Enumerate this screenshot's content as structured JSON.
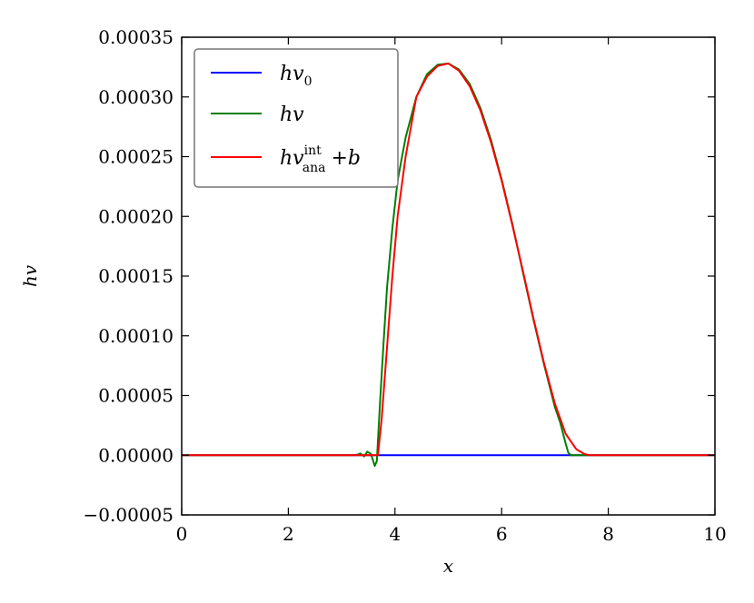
{
  "chart_data": {
    "type": "line",
    "title": "",
    "xlabel": "x",
    "ylabel": "hv",
    "xlim": [
      0,
      10
    ],
    "ylim": [
      -5e-05,
      0.00035
    ],
    "x_ticks": [
      0,
      2,
      4,
      6,
      8,
      10
    ],
    "x_tick_labels": [
      "0",
      "2",
      "4",
      "6",
      "8",
      "10"
    ],
    "y_ticks": [
      -5e-05,
      0,
      5e-05,
      0.0001,
      0.00015,
      0.0002,
      0.00025,
      0.0003,
      0.00035
    ],
    "y_tick_labels": [
      "−0.00005",
      "0.00000",
      "0.00005",
      "0.00010",
      "0.00015",
      "0.00020",
      "0.00025",
      "0.00030",
      "0.00035"
    ],
    "grid": false,
    "legend_position": "top-left",
    "series": [
      {
        "name": "hv0",
        "legend": {
          "base": "hv",
          "sub": "0",
          "sup": "",
          "suffix": ""
        },
        "color": "#0000ff",
        "x": [
          0,
          10
        ],
        "y": [
          0,
          0
        ]
      },
      {
        "name": "hv",
        "legend": {
          "base": "hv",
          "sub": "",
          "sup": "",
          "suffix": ""
        },
        "color": "#008000",
        "x": [
          0,
          3.2,
          3.3,
          3.35,
          3.42,
          3.48,
          3.55,
          3.62,
          3.66,
          3.72,
          3.78,
          3.85,
          3.95,
          4.05,
          4.2,
          4.4,
          4.6,
          4.8,
          5.0,
          5.2,
          5.4,
          5.6,
          5.8,
          6.0,
          6.2,
          6.4,
          6.6,
          6.8,
          7.0,
          7.1,
          7.2,
          7.25,
          7.3,
          7.4,
          10
        ],
        "y": [
          0,
          0,
          5e-07,
          1.5e-06,
          -1e-06,
          3e-06,
          1e-06,
          -9e-06,
          -5e-06,
          4.5e-05,
          9e-05,
          0.00014,
          0.00019,
          0.00023,
          0.000266,
          0.0003,
          0.000319,
          0.000327,
          0.000328,
          0.000323,
          0.000311,
          0.000291,
          0.000264,
          0.000231,
          0.000194,
          0.000153,
          0.000113,
          7.5e-05,
          4e-05,
          2.7e-05,
          1e-05,
          2e-06,
          0,
          0,
          0
        ]
      },
      {
        "name": "hv_ana^int + b",
        "legend": {
          "base": "hv",
          "sub": "ana",
          "sup": "int",
          "suffix": "+b"
        },
        "color": "#ff0000",
        "x": [
          0,
          3.68,
          3.75,
          3.85,
          3.95,
          4.05,
          4.2,
          4.4,
          4.6,
          4.8,
          5.0,
          5.2,
          5.4,
          5.6,
          5.8,
          6.0,
          6.2,
          6.4,
          6.6,
          6.8,
          7.0,
          7.2,
          7.4,
          7.55,
          7.65,
          10
        ],
        "y": [
          0,
          0,
          3e-05,
          9e-05,
          0.00015,
          0.0002,
          0.00025,
          0.0003,
          0.000317,
          0.000326,
          0.000328,
          0.000322,
          0.000309,
          0.000289,
          0.000262,
          0.00023,
          0.000193,
          0.000154,
          0.000114,
          7.6e-05,
          4.3e-05,
          1.8e-05,
          5e-06,
          1e-06,
          0,
          0
        ]
      }
    ]
  }
}
